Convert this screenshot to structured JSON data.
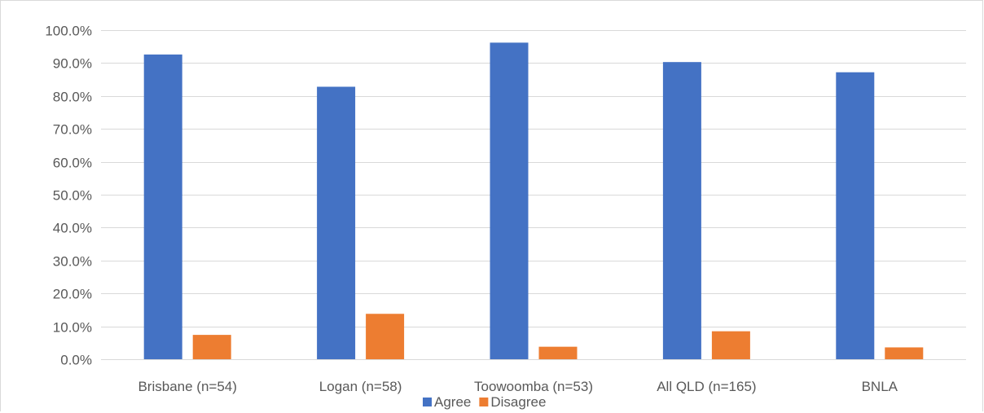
{
  "chart_data": {
    "type": "bar",
    "title": "",
    "xlabel": "",
    "ylabel": "",
    "categories": [
      "Brisbane (n=54)",
      "Logan (n=58)",
      "Toowoomba (n=53)",
      "All QLD (n=165)",
      "BNLA"
    ],
    "series": [
      {
        "name": "Agree",
        "color": "#4472c4",
        "values": [
          92.6,
          82.8,
          96.2,
          90.3,
          87.2
        ]
      },
      {
        "name": "Disagree",
        "color": "#ed7d31",
        "values": [
          7.4,
          13.8,
          3.8,
          8.5,
          3.6
        ]
      }
    ],
    "ylim": [
      0,
      100
    ],
    "y_ticks": [
      0,
      10,
      20,
      30,
      40,
      50,
      60,
      70,
      80,
      90,
      100
    ],
    "y_tick_labels": [
      "0.0%",
      "10.0%",
      "20.0%",
      "30.0%",
      "40.0%",
      "50.0%",
      "60.0%",
      "70.0%",
      "80.0%",
      "90.0%",
      "100.0%"
    ],
    "grid": true,
    "legend_position": "bottom"
  }
}
